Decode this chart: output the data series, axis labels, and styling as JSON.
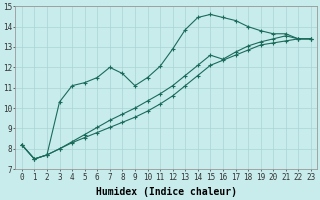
{
  "xlabel": "Humidex (Indice chaleur)",
  "background_color": "#c8ecec",
  "line_color": "#1a6b5a",
  "grid_color": "#aad4d4",
  "xlim": [
    -0.5,
    23.5
  ],
  "ylim": [
    7,
    15
  ],
  "xticks": [
    0,
    1,
    2,
    3,
    4,
    5,
    6,
    7,
    8,
    9,
    10,
    11,
    12,
    13,
    14,
    15,
    16,
    17,
    18,
    19,
    20,
    21,
    22,
    23
  ],
  "yticks": [
    7,
    8,
    9,
    10,
    11,
    12,
    13,
    14,
    15
  ],
  "line1_x": [
    0,
    1,
    2,
    3,
    4,
    5,
    6,
    7,
    8,
    9,
    10,
    11,
    12,
    13,
    14,
    15,
    16,
    17,
    18,
    19,
    20,
    21,
    22,
    23
  ],
  "line1_y": [
    8.2,
    7.5,
    7.7,
    10.3,
    11.1,
    11.25,
    11.5,
    12.0,
    11.7,
    11.1,
    11.5,
    12.05,
    12.9,
    13.85,
    14.45,
    14.6,
    14.45,
    14.3,
    14.0,
    13.8,
    13.65,
    13.65,
    13.4,
    13.4
  ],
  "line2_x": [
    0,
    1,
    2,
    3,
    4,
    5,
    6,
    7,
    8,
    9,
    10,
    11,
    12,
    13,
    14,
    15,
    16,
    17,
    18,
    19,
    20,
    21,
    22,
    23
  ],
  "line2_y": [
    8.2,
    7.5,
    7.7,
    8.0,
    8.3,
    8.55,
    8.8,
    9.05,
    9.3,
    9.55,
    9.85,
    10.2,
    10.6,
    11.1,
    11.6,
    12.1,
    12.35,
    12.6,
    12.85,
    13.1,
    13.2,
    13.3,
    13.4,
    13.4
  ],
  "line3_x": [
    0,
    1,
    2,
    3,
    4,
    5,
    6,
    7,
    8,
    9,
    10,
    11,
    12,
    13,
    14,
    15,
    16,
    17,
    18,
    19,
    20,
    21,
    22,
    23
  ],
  "line3_y": [
    8.2,
    7.5,
    7.7,
    8.0,
    8.35,
    8.7,
    9.05,
    9.4,
    9.7,
    10.0,
    10.35,
    10.7,
    11.1,
    11.6,
    12.1,
    12.6,
    12.4,
    12.75,
    13.05,
    13.25,
    13.4,
    13.55,
    13.4,
    13.4
  ],
  "marker": "+",
  "marker_size": 3.5,
  "line_width": 0.8,
  "label_fontsize": 7,
  "tick_fontsize": 5.5
}
